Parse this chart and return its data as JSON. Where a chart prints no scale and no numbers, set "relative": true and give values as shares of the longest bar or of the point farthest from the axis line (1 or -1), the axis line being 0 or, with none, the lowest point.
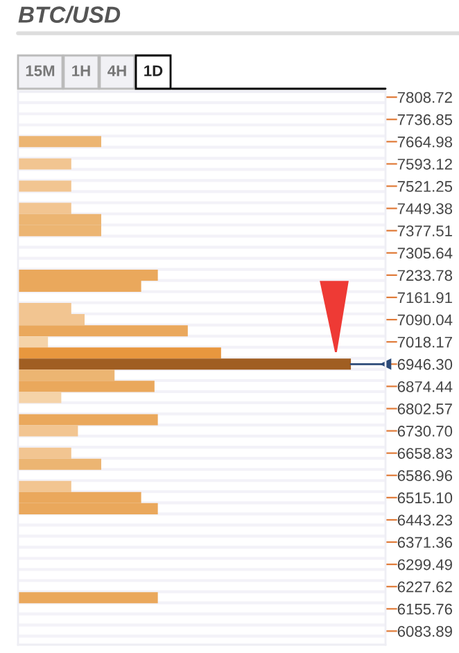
{
  "chart_data": {
    "type": "bar",
    "orientation": "horizontal",
    "relative": true,
    "title": "BTC/USD",
    "annotations": [
      "15M",
      "1H",
      "4H",
      "1D"
    ],
    "x": [
      7664.98,
      7593.12,
      7521.25,
      7449.38,
      7413.44,
      7377.51,
      7233.78,
      7197.84,
      7125.96,
      7090.04,
      7054.1,
      7018.17,
      6982.2,
      6946.3,
      6910.4,
      6874.44,
      6838.5,
      6766.6,
      6730.7,
      6658.83,
      6622.9,
      6551.0,
      6515.1,
      6479.2,
      6191.65
    ],
    "values": [
      0.25,
      0.16,
      0.16,
      0.16,
      0.25,
      0.25,
      0.42,
      0.37,
      0.16,
      0.2,
      0.51,
      0.09,
      0.61,
      1,
      0.29,
      0.41,
      0.13,
      0.42,
      0.18,
      0.16,
      0.25,
      0.16,
      0.37,
      0.42,
      0.42
    ],
    "colors": [
      "#ecb572",
      "#f2c591",
      "#f2c591",
      "#f2c591",
      "#ecb572",
      "#ecb572",
      "#eaa85c",
      "#eaa85c",
      "#f2c591",
      "#f2c591",
      "#eaa85c",
      "#f5d3a8",
      "#e8973e",
      "#a05e22",
      "#ecb572",
      "#eaa85c",
      "#f5d3a8",
      "#eaa85c",
      "#f2c591",
      "#f2c591",
      "#ecb572",
      "#f2c591",
      "#eaa85c",
      "#eaa85c",
      "#eaa85c"
    ],
    "ylim": [
      6040,
      7827
    ],
    "yticks": [
      7808.72,
      7736.85,
      7664.98,
      7593.12,
      7521.25,
      7449.38,
      7377.51,
      7305.64,
      7233.78,
      7161.91,
      7090.04,
      7018.17,
      {
        "value": 6946.3,
        "label": "6946.30"
      },
      6874.44,
      6802.57,
      {
        "value": 6730.7,
        "label": "6730.70"
      },
      6658.83,
      6586.96,
      {
        "value": 6515.1,
        "label": "6515.10"
      },
      6443.23,
      6371.36,
      6299.49,
      6227.62,
      6155.76,
      6083.89
    ],
    "grid": false
  }
}
